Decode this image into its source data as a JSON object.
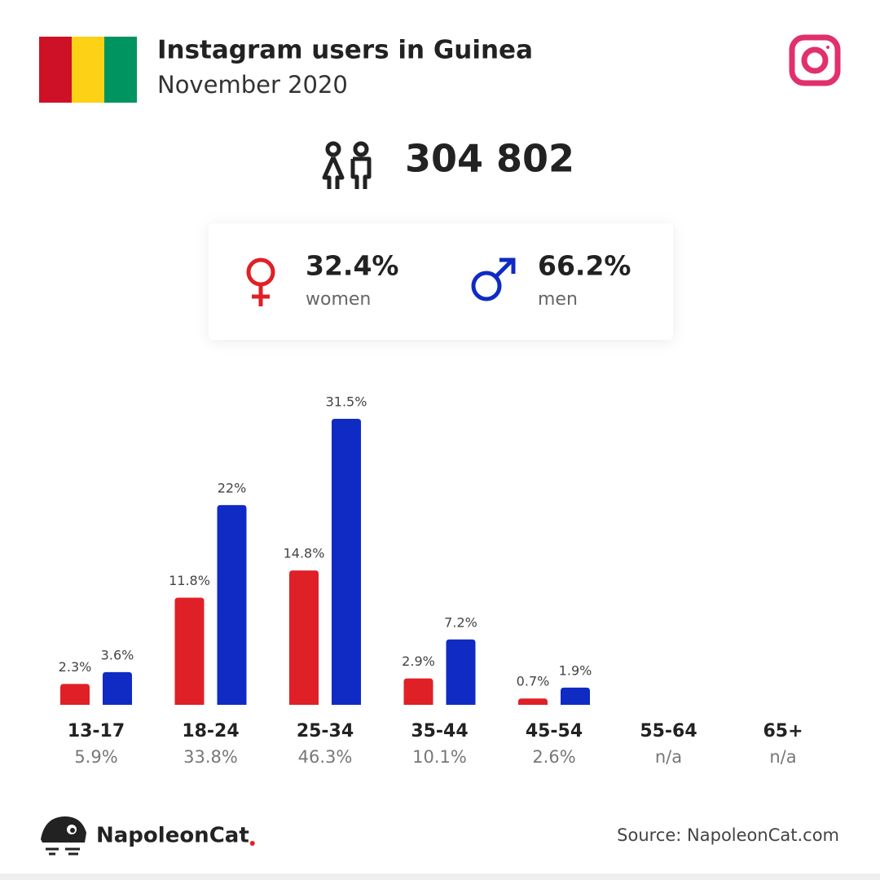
{
  "header": {
    "title": "Instagram users in Guinea",
    "subtitle": "November 2020"
  },
  "total": "304 802",
  "gender": {
    "women": "32.4%",
    "men": "66.2%"
  },
  "chart_data": {
    "type": "bar",
    "categories": [
      "13-17",
      "18-24",
      "25-34",
      "35-44",
      "45-54",
      "55-64",
      "65+"
    ],
    "category_totals": [
      "5.9%",
      "33.8%",
      "46.3%",
      "10.1%",
      "2.6%",
      "n/a",
      "n/a"
    ],
    "series": [
      {
        "name": "women",
        "color": "#e02027",
        "values": [
          2.3,
          11.8,
          14.8,
          2.9,
          0.7,
          null,
          null
        ],
        "value_labels": [
          "2.3%",
          "11.8%",
          "14.8%",
          "2.9%",
          "0.7%",
          null,
          null
        ]
      },
      {
        "name": "men",
        "color": "#0f2bc4",
        "values": [
          3.6,
          22,
          31.5,
          7.2,
          1.9,
          null,
          null
        ],
        "value_labels": [
          "3.6%",
          "22%",
          "31.5%",
          "7.2%",
          "1.9%",
          null,
          null
        ]
      }
    ]
  },
  "footer": {
    "brand": "NapoleonCat",
    "source": "Source: NapoleonCat.com"
  }
}
